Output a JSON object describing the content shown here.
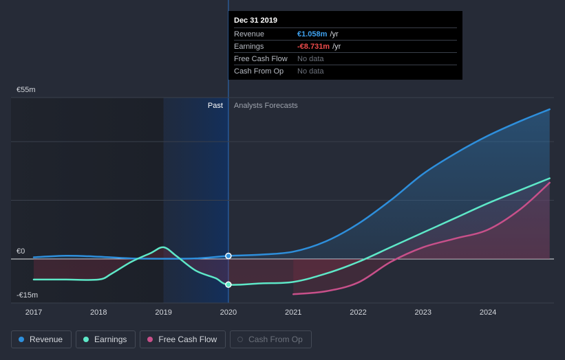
{
  "chart_data": {
    "type": "line",
    "x_unit": "year",
    "xlim": [
      2017,
      2024.95
    ],
    "ylim": [
      -15,
      55
    ],
    "y_ticks": [
      {
        "value": 55,
        "label": "€55m"
      },
      {
        "value": 0,
        "label": "€0"
      },
      {
        "value": -15,
        "label": "-€15m"
      }
    ],
    "gridlines": [
      55,
      40,
      20,
      0
    ],
    "x_ticks": [
      "2017",
      "2018",
      "2019",
      "2020",
      "2021",
      "2022",
      "2023",
      "2024"
    ],
    "past_label": "Past",
    "forecast_label": "Analysts Forecasts",
    "past_end": 2020,
    "series": [
      {
        "name": "Revenue",
        "color": "#2e8fdc",
        "area": true,
        "points": [
          [
            2017,
            0.6
          ],
          [
            2017.5,
            1.1
          ],
          [
            2018,
            0.8
          ],
          [
            2018.5,
            0.2
          ],
          [
            2019,
            0.1
          ],
          [
            2019.5,
            0.2
          ],
          [
            2020,
            1.058
          ],
          [
            2020.5,
            1.5
          ],
          [
            2021,
            2.5
          ],
          [
            2021.5,
            6
          ],
          [
            2022,
            12
          ],
          [
            2022.5,
            20
          ],
          [
            2023,
            29
          ],
          [
            2023.5,
            36
          ],
          [
            2024,
            42
          ],
          [
            2024.5,
            47
          ],
          [
            2024.95,
            51
          ]
        ]
      },
      {
        "name": "Earnings",
        "color": "#5ee8c8",
        "area": true,
        "points": [
          [
            2017,
            -7
          ],
          [
            2017.5,
            -7
          ],
          [
            2018,
            -7
          ],
          [
            2018.2,
            -5
          ],
          [
            2018.5,
            -1
          ],
          [
            2018.8,
            2
          ],
          [
            2019,
            4
          ],
          [
            2019.2,
            1
          ],
          [
            2019.5,
            -4
          ],
          [
            2019.8,
            -6.5
          ],
          [
            2020,
            -8.731
          ],
          [
            2020.5,
            -8.3
          ],
          [
            2021,
            -7.8
          ],
          [
            2021.5,
            -5
          ],
          [
            2022,
            -1
          ],
          [
            2022.5,
            4
          ],
          [
            2023,
            9
          ],
          [
            2023.5,
            14
          ],
          [
            2024,
            19
          ],
          [
            2024.5,
            23.5
          ],
          [
            2024.95,
            27.5
          ]
        ]
      },
      {
        "name": "Free Cash Flow",
        "color": "#c8508a",
        "area": true,
        "points": [
          [
            2021,
            -12
          ],
          [
            2021.5,
            -11
          ],
          [
            2022,
            -8
          ],
          [
            2022.5,
            -1
          ],
          [
            2023,
            4
          ],
          [
            2023.5,
            7
          ],
          [
            2024,
            10
          ],
          [
            2024.5,
            17
          ],
          [
            2024.95,
            26
          ]
        ]
      }
    ],
    "markers": [
      {
        "series": "Revenue",
        "x": 2020,
        "y": 1.058
      },
      {
        "series": "Earnings",
        "x": 2020,
        "y": -8.731
      }
    ]
  },
  "tooltip": {
    "date": "Dec 31 2019",
    "rows": [
      {
        "label": "Revenue",
        "value": "€1.058m",
        "unit": "/yr",
        "color": "#3fa2f0"
      },
      {
        "label": "Earnings",
        "value": "-€8.731m",
        "unit": "/yr",
        "color": "#f04c4c"
      },
      {
        "label": "Free Cash Flow",
        "nodata": "No data"
      },
      {
        "label": "Cash From Op",
        "nodata": "No data"
      }
    ]
  },
  "legend": [
    {
      "label": "Revenue",
      "color": "#2e8fdc",
      "active": true
    },
    {
      "label": "Earnings",
      "color": "#5ee8c8",
      "active": true
    },
    {
      "label": "Free Cash Flow",
      "color": "#c8508a",
      "active": true
    },
    {
      "label": "Cash From Op",
      "color": "#4a4f5a",
      "active": false
    }
  ]
}
